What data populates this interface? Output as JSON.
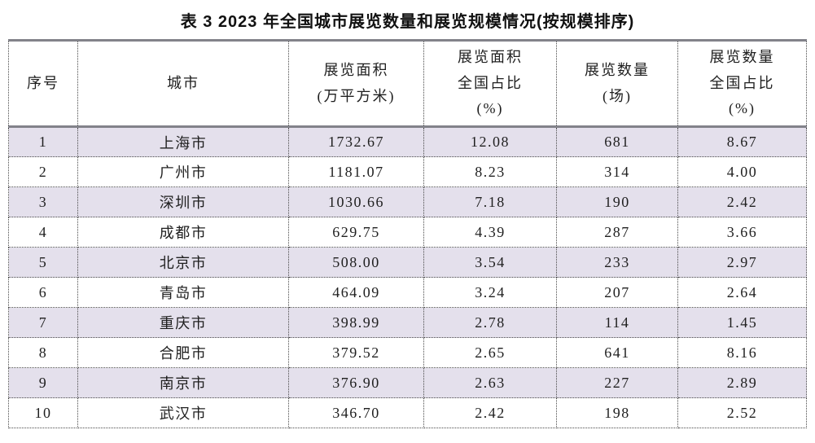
{
  "page": {
    "title": "表 3 2023 年全国城市展览数量和展览规模情况(按规模排序)"
  },
  "colors": {
    "row_alternate": "#e4e0ec",
    "row_plain": "#ffffff",
    "outer_top_border": "#82828a",
    "inner_border": "#4a4a4a",
    "text": "#1f1f1f"
  },
  "table": {
    "headers": [
      {
        "lines": [
          "序号"
        ]
      },
      {
        "lines": [
          "城市"
        ]
      },
      {
        "lines": [
          "展览面积",
          "(万平方米)"
        ]
      },
      {
        "lines": [
          "展览面积",
          "全国占比",
          "(%)"
        ]
      },
      {
        "lines": [
          "展览数量",
          "(场)"
        ]
      },
      {
        "lines": [
          "展览数量",
          "全国占比",
          "(%)"
        ]
      }
    ],
    "rows": [
      [
        "1",
        "上海市",
        "1732.67",
        "12.08",
        "681",
        "8.67"
      ],
      [
        "2",
        "广州市",
        "1181.07",
        "8.23",
        "314",
        "4.00"
      ],
      [
        "3",
        "深圳市",
        "1030.66",
        "7.18",
        "190",
        "2.42"
      ],
      [
        "4",
        "成都市",
        "629.75",
        "4.39",
        "287",
        "3.66"
      ],
      [
        "5",
        "北京市",
        "508.00",
        "3.54",
        "233",
        "2.97"
      ],
      [
        "6",
        "青岛市",
        "464.09",
        "3.24",
        "207",
        "2.64"
      ],
      [
        "7",
        "重庆市",
        "398.99",
        "2.78",
        "114",
        "1.45"
      ],
      [
        "8",
        "合肥市",
        "379.52",
        "2.65",
        "641",
        "8.16"
      ],
      [
        "9",
        "南京市",
        "376.90",
        "2.63",
        "227",
        "2.89"
      ],
      [
        "10",
        "武汉市",
        "346.70",
        "2.42",
        "198",
        "2.52"
      ]
    ]
  }
}
